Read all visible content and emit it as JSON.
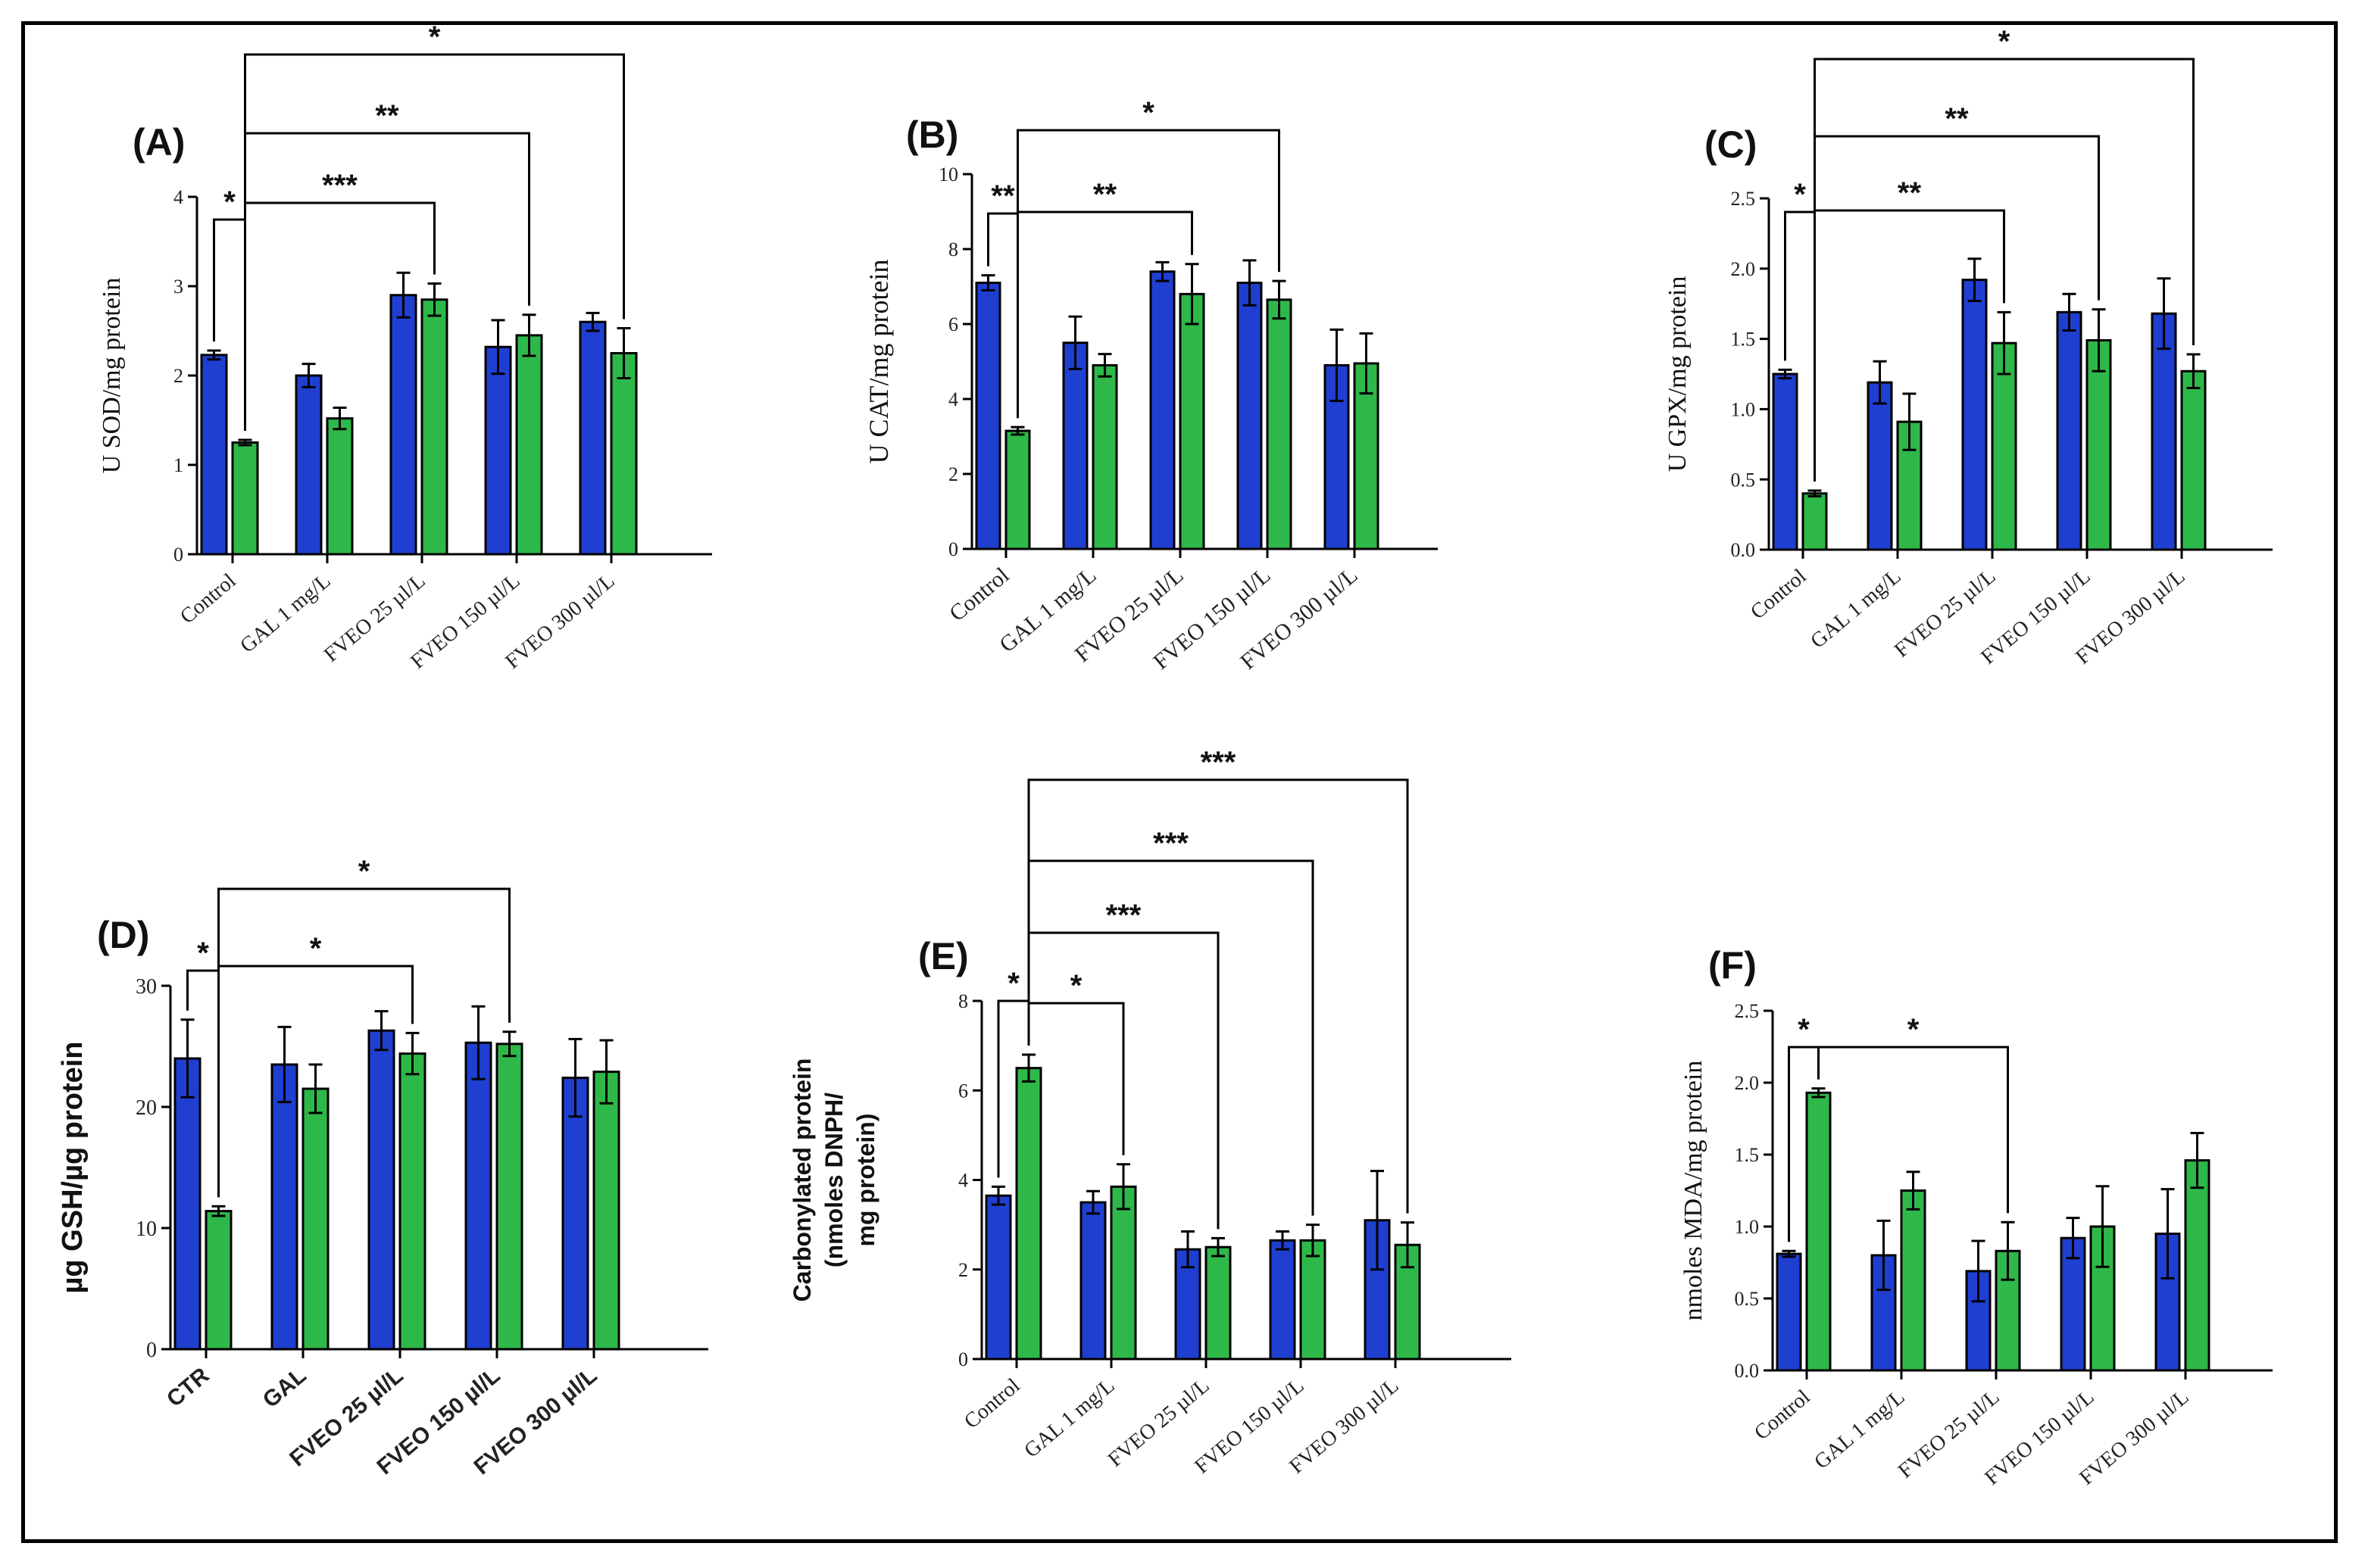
{
  "figure": {
    "series_colors": {
      "blue": "#1f3fd0",
      "green": "#2fb84a"
    },
    "chart_data": [
      {
        "type": "bar",
        "panel": "(A)",
        "ylabel": "U SOD/mg protein",
        "ylim": [
          0,
          4
        ],
        "yticks": [
          0,
          1,
          2,
          3,
          4
        ],
        "categories": [
          "Control",
          "GAL 1 mg/L",
          "FVEO 25 µl/L",
          "FVEO 150 µl/L",
          "FVEO 300 µl/L"
        ],
        "series": [
          {
            "name": "blue",
            "values": [
              2.23,
              2.0,
              2.9,
              2.32,
              2.6
            ],
            "errors": [
              0.05,
              0.13,
              0.25,
              0.3,
              0.1
            ]
          },
          {
            "name": "green",
            "values": [
              1.25,
              1.52,
              2.85,
              2.45,
              2.25
            ],
            "errors": [
              0.03,
              0.12,
              0.18,
              0.23,
              0.28
            ]
          }
        ],
        "significance": [
          {
            "label": "*",
            "from": [
              0,
              0
            ],
            "to": [
              0,
              1
            ]
          },
          {
            "label": "***",
            "from": [
              0,
              1
            ],
            "to": [
              2,
              1
            ]
          },
          {
            "label": "**",
            "from": [
              0,
              1
            ],
            "to": [
              3,
              1
            ]
          },
          {
            "label": "*",
            "from": [
              0,
              1
            ],
            "to": [
              4,
              1
            ]
          }
        ]
      },
      {
        "type": "bar",
        "panel": "(B)",
        "ylabel": "U CAT/mg protein",
        "ylim": [
          0,
          10
        ],
        "yticks": [
          0,
          2,
          4,
          6,
          8,
          10
        ],
        "categories": [
          "Control",
          "GAL 1 mg/L",
          "FVEO 25 µl/L",
          "FVEO 150 µl/L",
          "FVEO 300 µl/L"
        ],
        "series": [
          {
            "name": "blue",
            "values": [
              7.1,
              5.5,
              7.4,
              7.1,
              4.9
            ],
            "errors": [
              0.2,
              0.7,
              0.25,
              0.6,
              0.95
            ]
          },
          {
            "name": "green",
            "values": [
              3.15,
              4.9,
              6.8,
              6.65,
              4.95
            ],
            "errors": [
              0.1,
              0.3,
              0.8,
              0.5,
              0.8
            ]
          }
        ],
        "significance": [
          {
            "label": "**",
            "from": [
              0,
              0
            ],
            "to": [
              0,
              1
            ]
          },
          {
            "label": "**",
            "from": [
              0,
              1
            ],
            "to": [
              2,
              1
            ]
          },
          {
            "label": "*",
            "from": [
              0,
              1
            ],
            "to": [
              3,
              1
            ]
          }
        ]
      },
      {
        "type": "bar",
        "panel": "(C)",
        "ylabel": "U GPX/mg protein",
        "ylim": [
          0,
          2.5
        ],
        "yticks": [
          "0.0",
          "0.5",
          "1.0",
          "1.5",
          "2.0",
          "2.5"
        ],
        "categories": [
          "Control",
          "GAL 1 mg/L",
          "FVEO 25 µl/L",
          "FVEO 150 µl/L",
          "FVEO 300 µl/L"
        ],
        "series": [
          {
            "name": "blue",
            "values": [
              1.25,
              1.19,
              1.92,
              1.69,
              1.68
            ],
            "errors": [
              0.03,
              0.15,
              0.15,
              0.13,
              0.25
            ]
          },
          {
            "name": "green",
            "values": [
              0.4,
              0.91,
              1.47,
              1.49,
              1.27
            ],
            "errors": [
              0.02,
              0.2,
              0.22,
              0.22,
              0.12
            ]
          }
        ],
        "significance": [
          {
            "label": "*",
            "from": [
              0,
              0
            ],
            "to": [
              0,
              1
            ]
          },
          {
            "label": "**",
            "from": [
              0,
              1
            ],
            "to": [
              2,
              1
            ]
          },
          {
            "label": "**",
            "from": [
              0,
              1
            ],
            "to": [
              3,
              1
            ]
          },
          {
            "label": "*",
            "from": [
              0,
              1
            ],
            "to": [
              4,
              1
            ]
          }
        ]
      },
      {
        "type": "bar",
        "panel": "(D)",
        "ylabel": "µg GSH/µg protein",
        "ylim": [
          0,
          30
        ],
        "yticks": [
          0,
          10,
          20,
          30
        ],
        "categories": [
          "CTR",
          "GAL",
          "FVEO 25 µl/L",
          "FVEO 150 µl/L",
          "FVEO 300 µl/L"
        ],
        "series": [
          {
            "name": "blue",
            "values": [
              24.0,
              23.5,
              26.3,
              25.3,
              22.4
            ],
            "errors": [
              3.2,
              3.1,
              1.6,
              3.0,
              3.2
            ]
          },
          {
            "name": "green",
            "values": [
              11.4,
              21.5,
              24.4,
              25.2,
              22.9
            ],
            "errors": [
              0.4,
              2.0,
              1.7,
              1.0,
              2.6
            ]
          }
        ],
        "significance": [
          {
            "label": "*",
            "from": [
              0,
              0
            ],
            "to": [
              0,
              1
            ]
          },
          {
            "label": "*",
            "from": [
              0,
              1
            ],
            "to": [
              2,
              1
            ]
          },
          {
            "label": "*",
            "from": [
              0,
              1
            ],
            "to": [
              3,
              1
            ]
          }
        ]
      },
      {
        "type": "bar",
        "panel": "(E)",
        "ylabel": "Carbonylated protein (nmoles DNPH/ mg protein)",
        "ylabel_lines": [
          "Carbonylated protein",
          "(nmoles DNPH/",
          "mg protein)"
        ],
        "ylim": [
          0,
          8
        ],
        "yticks": [
          0,
          2,
          4,
          6,
          8
        ],
        "categories": [
          "Control",
          "GAL 1 mg/L",
          "FVEO 25 µl/L",
          "FVEO 150 µl/L",
          "FVEO 300 µl/L"
        ],
        "series": [
          {
            "name": "blue",
            "values": [
              3.65,
              3.5,
              2.45,
              2.65,
              3.1
            ],
            "errors": [
              0.2,
              0.25,
              0.4,
              0.2,
              1.1
            ]
          },
          {
            "name": "green",
            "values": [
              6.5,
              3.85,
              2.5,
              2.65,
              2.55
            ],
            "errors": [
              0.3,
              0.5,
              0.2,
              0.35,
              0.5
            ]
          }
        ],
        "significance": [
          {
            "label": "*",
            "from": [
              0,
              0
            ],
            "to": [
              0,
              1
            ]
          },
          {
            "label": "*",
            "from": [
              0,
              1
            ],
            "to": [
              1,
              1
            ]
          },
          {
            "label": "***",
            "from": [
              0,
              1
            ],
            "to": [
              2,
              1
            ]
          },
          {
            "label": "***",
            "from": [
              0,
              1
            ],
            "to": [
              3,
              1
            ]
          },
          {
            "label": "***",
            "from": [
              0,
              1
            ],
            "to": [
              4,
              1
            ]
          }
        ]
      },
      {
        "type": "bar",
        "panel": "(F)",
        "ylabel": "nmoles MDA/mg protein",
        "ylim": [
          0,
          2.5
        ],
        "yticks": [
          "0.0",
          "0.5",
          "1.0",
          "1.5",
          "2.0",
          "2.5"
        ],
        "categories": [
          "Control",
          "GAL 1 mg/L",
          "FVEO 25 µl/L",
          "FVEO 150 µl/L",
          "FVEO 300 µl/L"
        ],
        "series": [
          {
            "name": "blue",
            "values": [
              0.81,
              0.8,
              0.69,
              0.92,
              0.95
            ],
            "errors": [
              0.02,
              0.24,
              0.21,
              0.14,
              0.31
            ]
          },
          {
            "name": "green",
            "values": [
              1.93,
              1.25,
              0.83,
              1.0,
              1.46
            ],
            "errors": [
              0.03,
              0.13,
              0.2,
              0.28,
              0.19
            ]
          }
        ],
        "significance": [
          {
            "label": "*",
            "from": [
              0,
              0
            ],
            "to": [
              0,
              1
            ]
          },
          {
            "label": "*",
            "from": [
              0,
              1
            ],
            "to": [
              2,
              1
            ]
          }
        ]
      }
    ]
  }
}
